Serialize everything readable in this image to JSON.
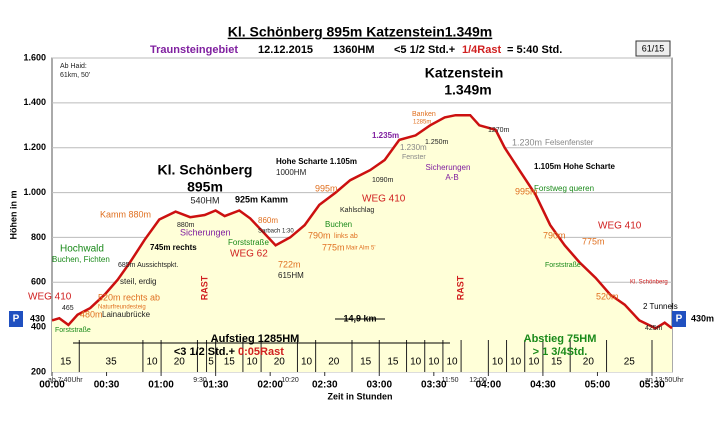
{
  "chart_data": {
    "type": "line",
    "title": "Kl. Schönberg 895m Katzenstein1.349m",
    "subtitle": [
      "Traunsteingebiet",
      "12.12.2015",
      "1360HM",
      "<5 1/2 Std.+",
      "1/4Rast",
      "= 5:40 Std."
    ],
    "badge": "61/15",
    "x_label": "Zeit in Stunden",
    "y_label": "Höhen in m",
    "color": "#cc1010",
    "fill": "#ffffd8",
    "grid": true,
    "x": [
      0,
      4,
      9,
      14,
      21,
      29,
      36,
      43,
      51,
      59,
      68,
      76,
      84,
      90,
      95,
      103,
      109,
      116,
      123,
      131,
      139,
      147,
      156,
      164,
      175,
      183,
      191,
      200,
      208,
      216,
      222,
      230,
      235,
      244,
      249,
      257,
      266,
      274,
      282,
      290,
      299,
      307,
      315,
      323,
      332,
      337,
      341
    ],
    "values": [
      430,
      440,
      410,
      455,
      485,
      545,
      610,
      690,
      790,
      880,
      915,
      890,
      900,
      920,
      895,
      920,
      885,
      825,
      765,
      800,
      855,
      945,
      1000,
      1055,
      1100,
      1145,
      1235,
      1255,
      1300,
      1335,
      1345,
      1345,
      1300,
      1280,
      1200,
      1100,
      990,
      855,
      765,
      690,
      620,
      545,
      500,
      430,
      395,
      420,
      395
    ],
    "xlim": [
      0,
      341
    ],
    "ylim": [
      200,
      1600
    ],
    "xticks": [
      {
        "value": 0,
        "label": "00:00"
      },
      {
        "value": 30,
        "label": "00:30"
      },
      {
        "value": 60,
        "label": "01:00"
      },
      {
        "value": 90,
        "label": "01:30"
      },
      {
        "value": 120,
        "label": "02:00"
      },
      {
        "value": 150,
        "label": "02:30"
      },
      {
        "value": 180,
        "label": "03:00"
      },
      {
        "value": 210,
        "label": "03:30"
      },
      {
        "value": 240,
        "label": "04:00"
      },
      {
        "value": 270,
        "label": "04:30"
      },
      {
        "value": 300,
        "label": "05:00"
      },
      {
        "value": 330,
        "label": "05:30"
      }
    ],
    "yticks": [
      200,
      400,
      600,
      800,
      {
        "value": 1000,
        "label": "1.000"
      },
      {
        "value": 1200,
        "label": "1.200"
      },
      {
        "value": 1400,
        "label": "1.400"
      },
      {
        "value": 1600,
        "label": "1.600"
      }
    ],
    "segment_minutes": [
      15,
      35,
      10,
      20,
      5,
      15,
      10,
      20,
      10,
      20,
      15,
      15,
      10,
      10,
      10,
      10,
      10,
      10,
      15,
      20,
      25
    ],
    "rests": [
      {
        "after_segment": 3,
        "minutes": 5
      },
      {
        "after_segment": 14,
        "minutes": 15
      }
    ],
    "annotations": [
      "Ab Haid:",
      "61km, 50'",
      "Katzenstein",
      "1.349m",
      "Kl. Schönberg",
      "895m",
      "540HM",
      "Kamm 880m",
      "880m",
      "925m Kamm",
      "Sicherungen",
      "745m rechts",
      "685m Aussichtspkt.",
      "steil, erdig",
      "Hochwald",
      "Buchen, Fichten",
      "WEG 410",
      "520m rechts ab",
      "Naturfreundesteig",
      "480m",
      "Lainaubrücke",
      "465",
      "Forststraße",
      "RAST",
      "860m",
      "Sarbach 1:30",
      "Forststraße",
      "WEG 62",
      "722m",
      "615HM",
      "775m",
      "Mair Alm 5'",
      "790m",
      "links ab",
      "Buchen",
      "Kahlschlag",
      "995m",
      "WEG 410",
      "Hohe Scharte 1.105m",
      "1000HM",
      "1090m",
      "1.235m",
      "Banken",
      "1285m",
      "1.250m",
      "1.230m",
      "Fenster",
      "Sicherungen",
      "A-B",
      "1270m",
      "1.230m",
      "Felsenfenster",
      "1.105m Hohe Scharte",
      "Forstweg queren",
      "995m",
      "WEG 410",
      "790m",
      "775m",
      "Forststraße",
      "520m",
      "Kl. Schönberg",
      "2 Tunnels",
      "425m",
      "RAST",
      "Aufstieg 1285HM",
      "<3 1/2 Std.+",
      "0:05Rast",
      "14,9 km",
      "Abstieg 75HM",
      "> 1 3/4Std.",
      "ab 7:40Uhr",
      "9:30",
      "10:20",
      "11:50",
      "12:00",
      "an 13:50Uhr",
      "P",
      "430",
      "P",
      "430m"
    ]
  }
}
